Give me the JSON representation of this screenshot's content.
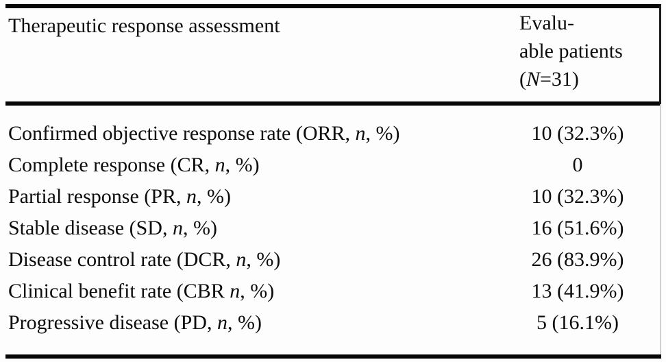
{
  "figure": {
    "background_color": "#fdfdfd",
    "rule_color": "#070707",
    "text_color": "#0d0d0d"
  },
  "table": {
    "header": {
      "col1": "Therapeutic response assessment",
      "col2_line1": "Evalu-",
      "col2_line2": "able patients",
      "col2_line3_pre": "(",
      "col2_line3_italic": "N",
      "col2_line3_post": "=31)"
    },
    "rows": [
      {
        "label_pre": "Confirmed objective response rate (ORR, ",
        "label_italic": "n",
        "label_post": ", %)",
        "value": "10 (32.3%)"
      },
      {
        "label_pre": "Complete response (CR, ",
        "label_italic": "n",
        "label_post": ", %)",
        "value": "0"
      },
      {
        "label_pre": "Partial response (PR, ",
        "label_italic": "n",
        "label_post": ", %)",
        "value": "10 (32.3%)"
      },
      {
        "label_pre": "Stable disease (SD, ",
        "label_italic": "n",
        "label_post": ", %)",
        "value": "16 (51.6%)"
      },
      {
        "label_pre": "Disease control rate (DCR, ",
        "label_italic": "n",
        "label_post": ", %)",
        "value": "26 (83.9%)"
      },
      {
        "label_pre": "Clinical benefit rate (CBR ",
        "label_italic": "n",
        "label_post": ", %)",
        "value": "13 (41.9%)"
      },
      {
        "label_pre": "Progressive disease (PD, ",
        "label_italic": "n",
        "label_post": ", %)",
        "value": "5 (16.1%)"
      }
    ]
  },
  "chart_data": {
    "type": "table",
    "title": "Therapeutic response assessment",
    "columns": [
      "Therapeutic response assessment",
      "Evaluable patients (N=31)"
    ],
    "rows": [
      [
        "Confirmed objective response rate (ORR, n, %)",
        "10 (32.3%)"
      ],
      [
        "Complete response (CR, n, %)",
        "0"
      ],
      [
        "Partial response (PR, n, %)",
        "10 (32.3%)"
      ],
      [
        "Stable disease (SD, n, %)",
        "16 (51.6%)"
      ],
      [
        "Disease control rate (DCR, n, %)",
        "26 (83.9%)"
      ],
      [
        "Clinical benefit rate (CBR n, %)",
        "13 (41.9%)"
      ],
      [
        "Progressive disease (PD, n, %)",
        "5 (16.1%)"
      ]
    ]
  }
}
